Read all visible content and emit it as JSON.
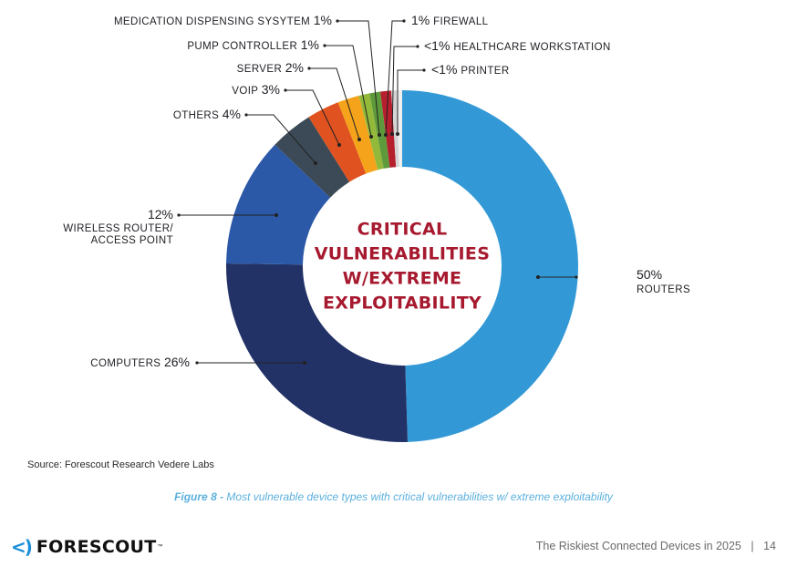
{
  "chart_data": {
    "type": "pie",
    "title": "CRITICAL VULNERABILITIES W/EXTREME EXPLOITABILITY",
    "title_lines": [
      "CRITICAL",
      "VULNERABILITIES",
      "W/EXTREME",
      "EXPLOITABILITY"
    ],
    "slices": [
      {
        "key": "routers",
        "label_lines": [
          "ROUTERS"
        ],
        "pct_text": "50%",
        "value": 50,
        "color": "#3399d6"
      },
      {
        "key": "computers",
        "label_lines": [
          "COMPUTERS"
        ],
        "pct_text": "26%",
        "value": 26,
        "color": "#223266"
      },
      {
        "key": "wireless",
        "label_lines": [
          "WIRELESS ROUTER/",
          "ACCESS POINT"
        ],
        "pct_text": "12%",
        "value": 12,
        "color": "#2c58a8"
      },
      {
        "key": "others",
        "label_lines": [
          "OTHERS"
        ],
        "pct_text": "4%",
        "value": 4,
        "color": "#3b4a56"
      },
      {
        "key": "voip",
        "label_lines": [
          "VOIP"
        ],
        "pct_text": "3%",
        "value": 3,
        "color": "#e0521f"
      },
      {
        "key": "server",
        "label_lines": [
          "SERVER"
        ],
        "pct_text": "2%",
        "value": 2,
        "color": "#f5a31a"
      },
      {
        "key": "pump",
        "label_lines": [
          "PUMP CONTROLLER"
        ],
        "pct_text": "1%",
        "value": 1,
        "color": "#93b93a"
      },
      {
        "key": "medication",
        "label_lines": [
          "MEDICATION DISPENSING SYSYTEM"
        ],
        "pct_text": "1%",
        "value": 1,
        "color": "#5e9a3c"
      },
      {
        "key": "firewall",
        "label_lines": [
          "FIREWALL"
        ],
        "pct_text": "1%",
        "value": 1,
        "color": "#b51f2e"
      },
      {
        "key": "workstation",
        "label_lines": [
          "HEALTHCARE WORKSTATION"
        ],
        "pct_text": "<1%",
        "value": 0.5,
        "color": "#d4d4d4"
      },
      {
        "key": "printer",
        "label_lines": [
          "PRINTER"
        ],
        "pct_text": "<1%",
        "value": 0.5,
        "color": "#efefef"
      }
    ]
  },
  "source": "Source: Forescout Research Vedere Labs",
  "caption": {
    "number": "Figure 8 -",
    "text": "Most vulnerable device types with critical vulnerabilities w/ extreme exploitability"
  },
  "footer": {
    "logo_mark": "<)",
    "logo_word": "FORESCOUT",
    "logo_tm": "™",
    "report_title": "The Riskiest Connected Devices in 2025",
    "separator": "|",
    "page_number": "14"
  }
}
